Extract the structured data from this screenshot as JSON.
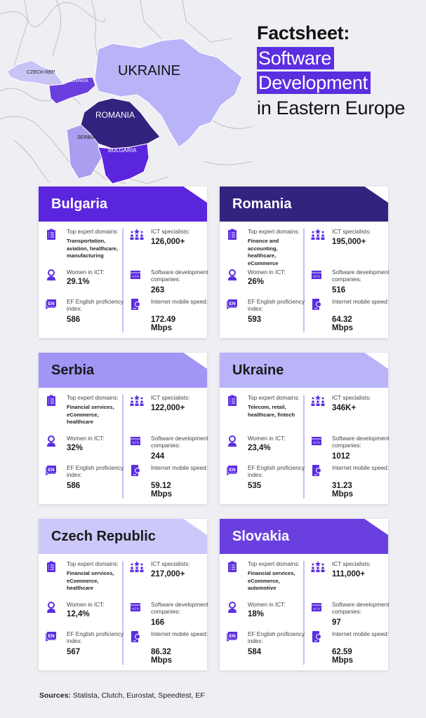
{
  "title": {
    "line1": "Factsheet:",
    "line2": "Software",
    "line3": "Development",
    "line4": "in Eastern Europe"
  },
  "map": {
    "labels": {
      "ukraine": "UKRAINE",
      "czech": "CZECH REP.",
      "slovakia": "SLOVAKIA",
      "romania": "ROMANIA",
      "serbia": "SERBIA",
      "bulgaria": "BULGARIA"
    },
    "colors": {
      "ukraine": "#b9b3f7",
      "czech": "#c8c4f5",
      "slovakia": "#6a3fe0",
      "romania": "#34237e",
      "serbia": "#a99ef0",
      "bulgaria": "#5b25dd"
    }
  },
  "labels": {
    "domains": "Top expert domains:",
    "ict": "ICT specialists:",
    "women": "Women in ICT:",
    "companies": "Software development companies:",
    "ef": "EF English proficiency index:",
    "speed": "Internet mobile speed:"
  },
  "countries": [
    {
      "name": "Bulgaria",
      "header_color": "#5b25dd",
      "text_color": "#ffffff",
      "domains": "Transportation, aviation, healthcare, manufacturing",
      "ict": "126,000+",
      "women": "29.1%",
      "companies": "263",
      "ef": "586",
      "speed": "172.49 Mbps"
    },
    {
      "name": "Romania",
      "header_color": "#34237e",
      "text_color": "#ffffff",
      "domains": "Finance and accounting, healthcare, eCommerce",
      "ict": "195,000+",
      "women": "26%",
      "companies": "516",
      "ef": "593",
      "speed": "64.32 Mbps"
    },
    {
      "name": "Serbia",
      "header_color": "#a195f5",
      "text_color": "#1a1a1a",
      "domains": "Financial services, eCommerce, healthcare",
      "ict": "122,000+",
      "women": "32%",
      "companies": "244",
      "ef": "586",
      "speed": "59.12 Mbps"
    },
    {
      "name": "Ukraine",
      "header_color": "#b9b3fa",
      "text_color": "#1a1a1a",
      "domains": "Telecom, retail, healthcare, fintech",
      "ict": "346K+",
      "women": "23,4%",
      "companies": "1012",
      "ef": "535",
      "speed": "31.23 Mbps"
    },
    {
      "name": "Czech Republic",
      "header_color": "#cdc8fa",
      "text_color": "#1a1a1a",
      "domains": "Financial services, eCommerce, healthcare",
      "ict": "217,000+",
      "women": "12,4%",
      "companies": "166",
      "ef": "567",
      "speed": "86.32 Mbps"
    },
    {
      "name": "Slovakia",
      "header_color": "#6a3fe0",
      "text_color": "#ffffff",
      "domains": "Financial services, eCommerce, automotive",
      "ict": "111,000+",
      "women": "18%",
      "companies": "97",
      "ef": "584",
      "speed": "62.59 Mbps"
    }
  ],
  "sources": {
    "label": "Sources:",
    "text": " Statista, Clutch, Eurostat, Speedtest, EF"
  },
  "accent_color": "#5b2ee0"
}
